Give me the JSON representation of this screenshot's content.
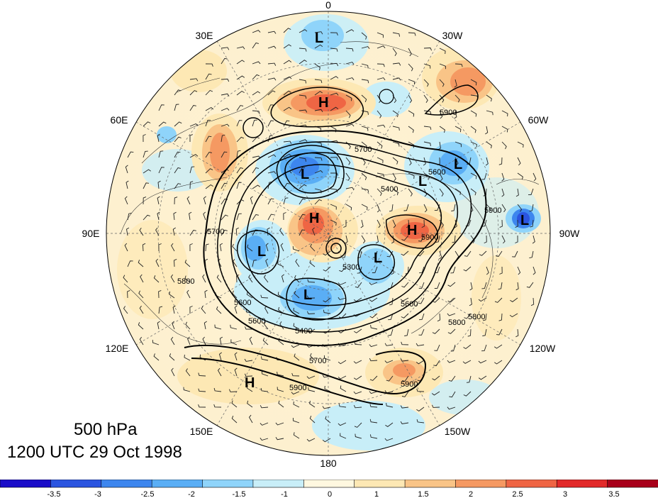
{
  "title": {
    "level": "500 hPa",
    "time": "1200 UTC 29 Oct 1998"
  },
  "longitude_labels": [
    {
      "key": "lon-0",
      "text": "0"
    },
    {
      "key": "lon-30w",
      "text": "30W"
    },
    {
      "key": "lon-60w",
      "text": "60W"
    },
    {
      "key": "lon-90w",
      "text": "90W"
    },
    {
      "key": "lon-120w",
      "text": "120W"
    },
    {
      "key": "lon-150w",
      "text": "150W"
    },
    {
      "key": "lon-180",
      "text": "180"
    },
    {
      "key": "lon-150e",
      "text": "150E"
    },
    {
      "key": "lon-120e",
      "text": "120E"
    },
    {
      "key": "lon-90e",
      "text": "90E"
    },
    {
      "key": "lon-60e",
      "text": "60E"
    },
    {
      "key": "lon-30e",
      "text": "30E"
    }
  ],
  "contour_labels": [
    "5900",
    "5700",
    "5600",
    "5400",
    "5300",
    "5600",
    "5800",
    "5700",
    "5900",
    "5600",
    "5800",
    "5900",
    "5900",
    "5400",
    "5700",
    "5600",
    "5800",
    "5900"
  ],
  "pressure_centers": [
    "L",
    "H",
    "L",
    "L",
    "H",
    "L",
    "L",
    "H",
    "L",
    "L",
    "H",
    "L"
  ],
  "colorbar": {
    "tick_labels": [
      "-3.5",
      "-3",
      "-2.5",
      "-2",
      "-1.5",
      "-1",
      "0",
      "1",
      "1.5",
      "2",
      "2.5",
      "3",
      "3.5"
    ],
    "colors": [
      "#1a0dc8",
      "#2b55e0",
      "#3d86ee",
      "#5aaef5",
      "#8fd4fa",
      "#c8eef8",
      "#fff8e0",
      "#fde8b4",
      "#f9c487",
      "#f59962",
      "#ef6544",
      "#e22a2a",
      "#a8001a"
    ]
  },
  "colors": {
    "background": "#ffffff",
    "contour": "#000000"
  }
}
